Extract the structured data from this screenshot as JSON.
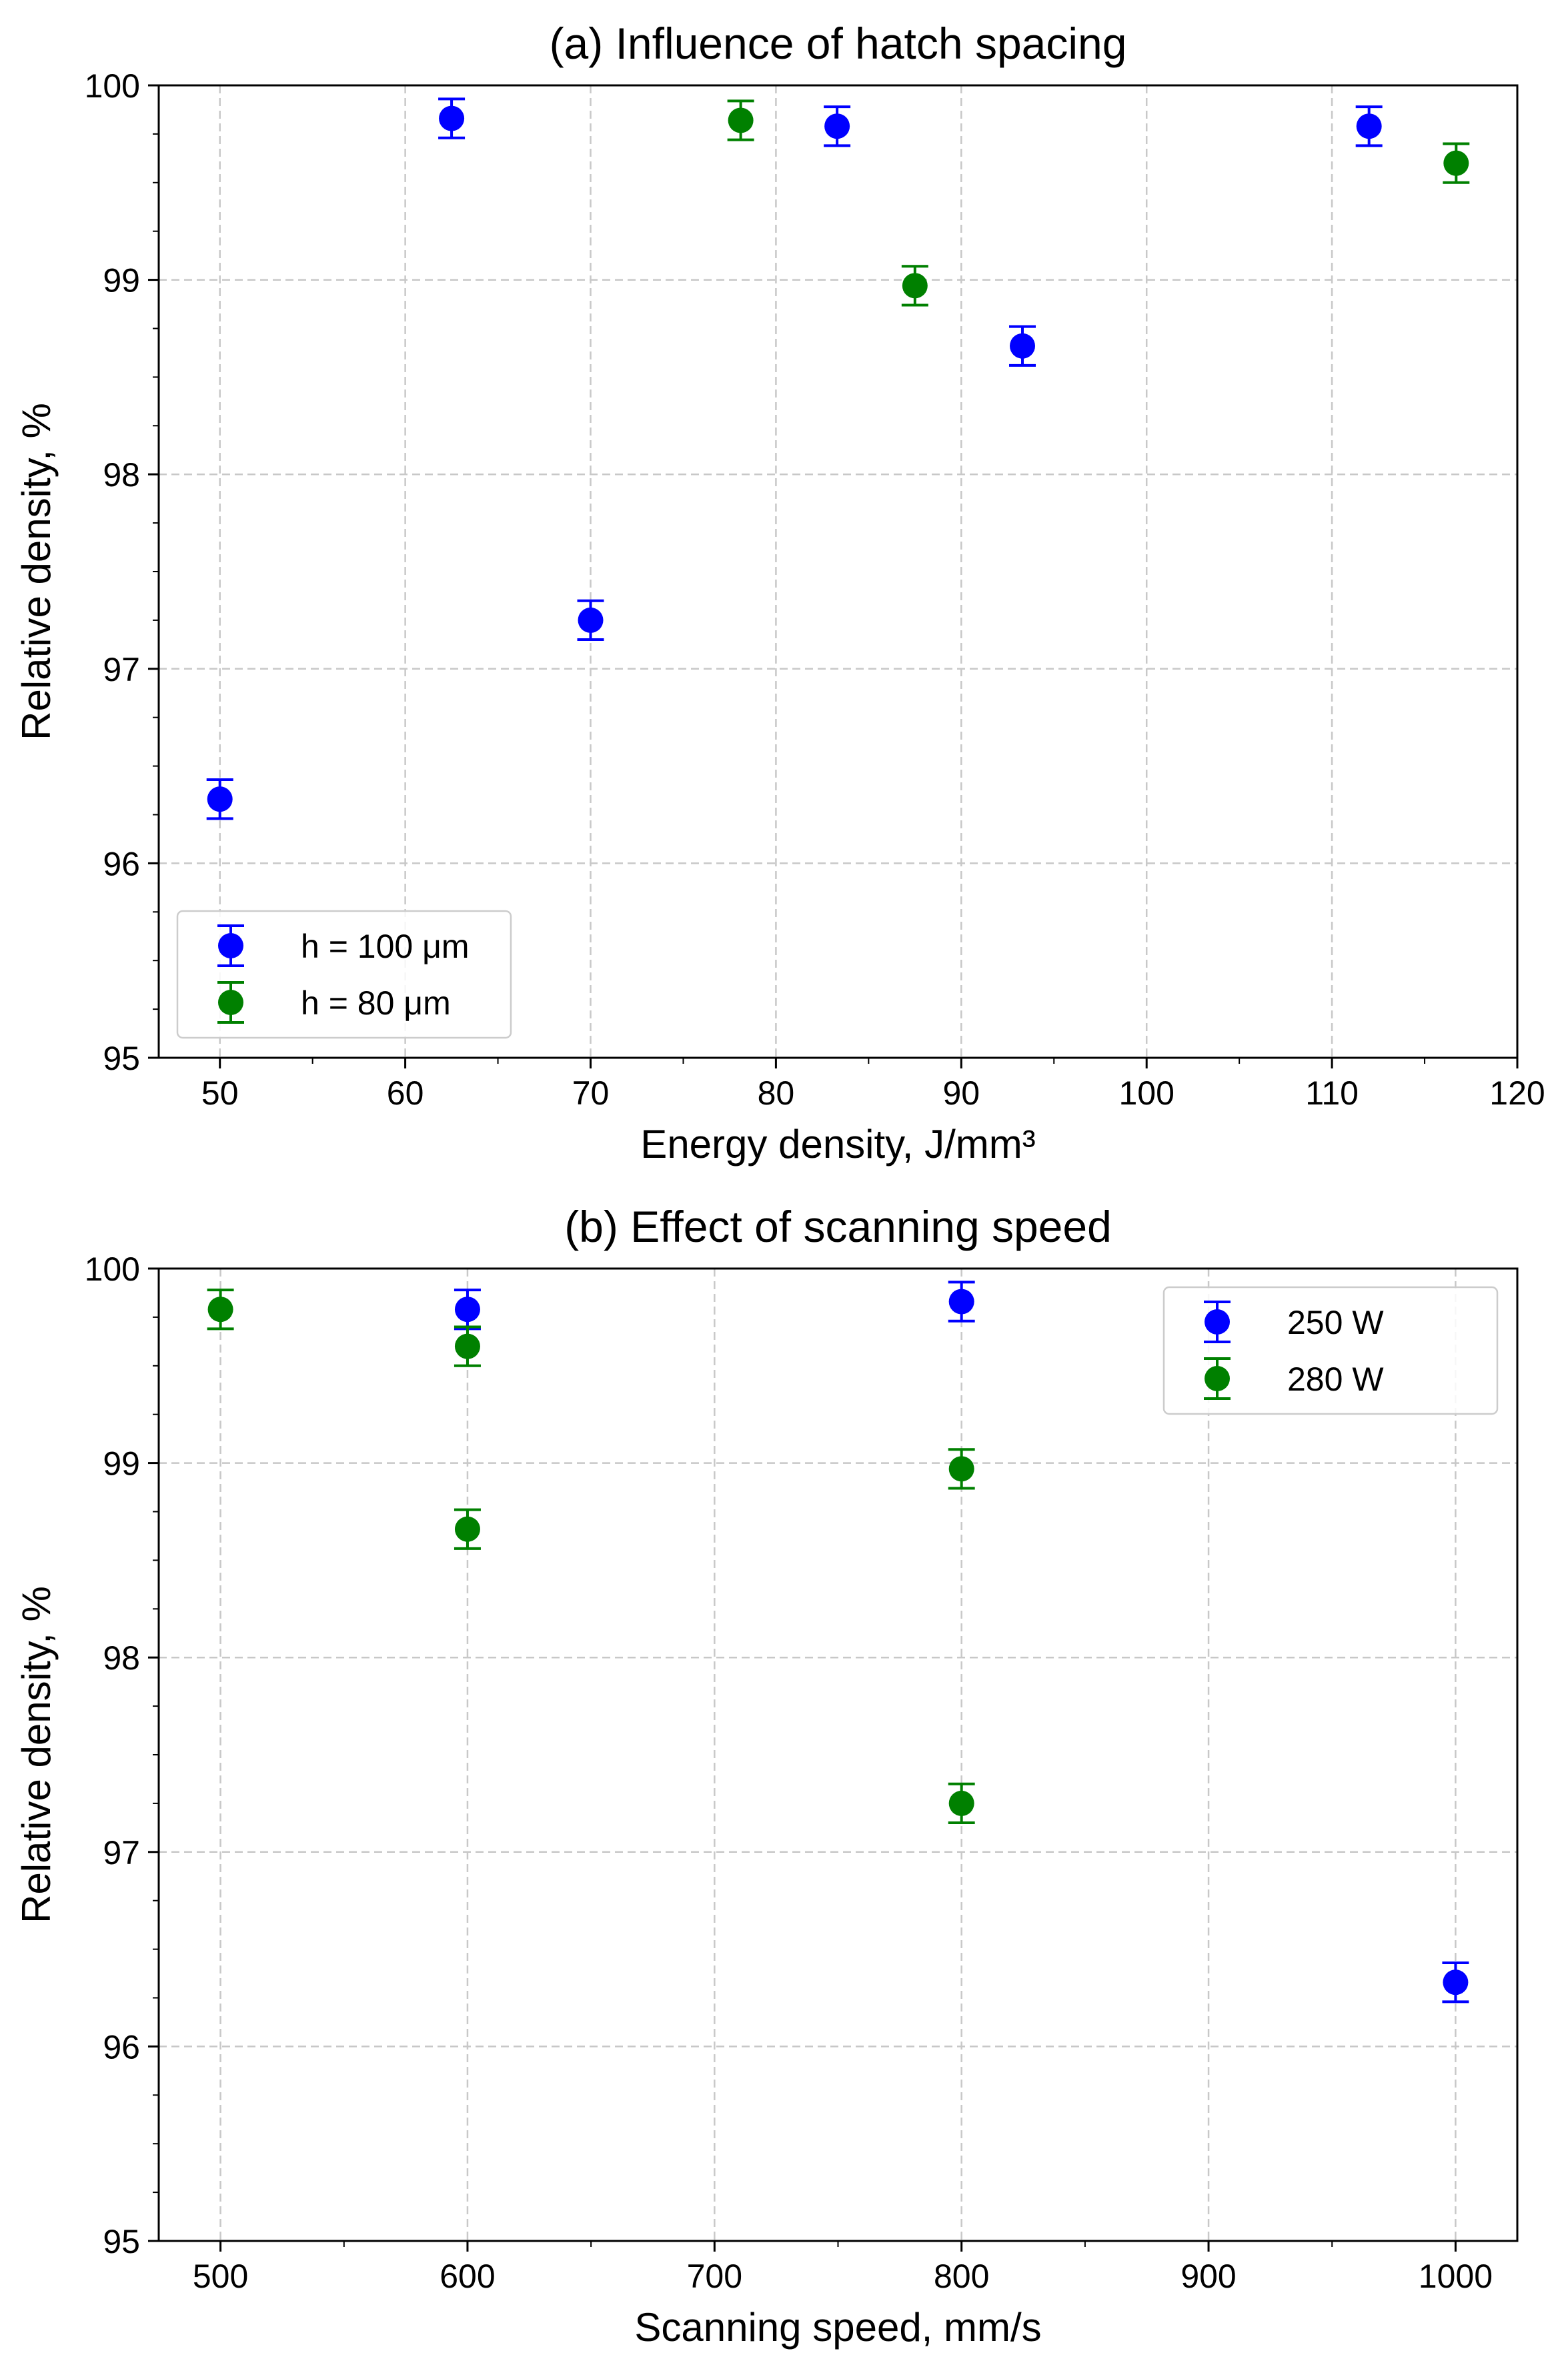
{
  "chart_data": [
    {
      "type": "scatter",
      "title": "(a) Influence of hatch spacing",
      "xlabel": "Energy density, J/mm³",
      "ylabel": "Relative density, %",
      "xlim": [
        46.7,
        120
      ],
      "ylim": [
        95,
        100
      ],
      "xticks": [
        50,
        60,
        70,
        80,
        90,
        100,
        110,
        120
      ],
      "yticks": [
        95,
        96,
        97,
        98,
        99,
        100
      ],
      "grid": true,
      "legend_position": "lower-left",
      "series": [
        {
          "name": "h = 100 μm",
          "color": "#0000ff",
          "x": [
            50,
            62.5,
            70,
            83.3,
            93.3,
            112
          ],
          "y": [
            96.33,
            99.83,
            97.25,
            99.79,
            98.66,
            99.79
          ],
          "yerr": [
            0.1,
            0.1,
            0.1,
            0.1,
            0.1,
            0.1
          ]
        },
        {
          "name": "h = 80 μm",
          "color": "#008000",
          "x": [
            78.1,
            87.5,
            116.7
          ],
          "y": [
            99.82,
            98.97,
            99.6
          ],
          "yerr": [
            0.1,
            0.1,
            0.1
          ]
        }
      ]
    },
    {
      "type": "scatter",
      "title": "(b) Effect of scanning speed",
      "xlabel": "Scanning speed, mm/s",
      "ylabel": "Relative density, %",
      "xlim": [
        475,
        1025
      ],
      "ylim": [
        95,
        100
      ],
      "xticks": [
        500,
        600,
        700,
        800,
        900,
        1000
      ],
      "yticks": [
        95,
        96,
        97,
        98,
        99,
        100
      ],
      "grid": true,
      "legend_position": "upper-right",
      "series": [
        {
          "name": "250 W",
          "color": "#0000ff",
          "x": [
            600,
            800,
            1000
          ],
          "y": [
            99.79,
            99.83,
            96.33
          ],
          "yerr": [
            0.1,
            0.1,
            0.1
          ]
        },
        {
          "name": "280 W",
          "color": "#008000",
          "x": [
            500,
            600,
            600,
            800,
            800
          ],
          "y": [
            99.79,
            99.6,
            98.66,
            98.97,
            97.25
          ],
          "yerr": [
            0.1,
            0.1,
            0.1,
            0.1,
            0.1
          ]
        }
      ]
    }
  ]
}
